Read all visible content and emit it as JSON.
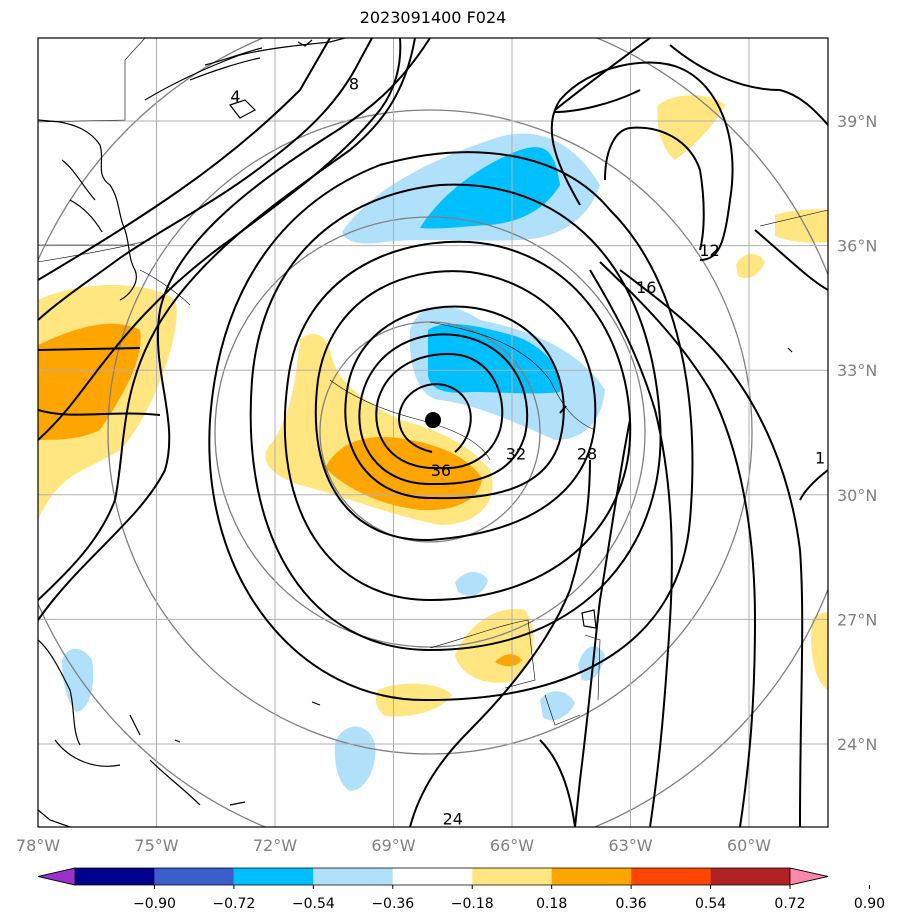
{
  "title": "2023091400 F024",
  "map": {
    "lon_range": [
      -78,
      -58
    ],
    "lat_range": [
      22,
      41
    ],
    "lon_ticks": [
      {
        "value": -78,
        "label": "78°W"
      },
      {
        "value": -75,
        "label": "75°W"
      },
      {
        "value": -72,
        "label": "72°W"
      },
      {
        "value": -69,
        "label": "69°W"
      },
      {
        "value": -66,
        "label": "66°W"
      },
      {
        "value": -63,
        "label": "63°W"
      },
      {
        "value": -60,
        "label": "60°W"
      }
    ],
    "lat_ticks": [
      {
        "value": 24,
        "label": "24°N"
      },
      {
        "value": 27,
        "label": "27°N"
      },
      {
        "value": 30,
        "label": "30°N"
      },
      {
        "value": 33,
        "label": "33°N"
      },
      {
        "value": 36,
        "label": "36°N"
      },
      {
        "value": 39,
        "label": "39°N"
      }
    ],
    "grid": true,
    "storm_center": {
      "lon": -68.0,
      "lat": 31.8
    },
    "contour_labels": [
      {
        "text": "36",
        "lon": -67.8,
        "lat": 30.6
      },
      {
        "text": "32",
        "lon": -65.9,
        "lat": 31.0
      },
      {
        "text": "28",
        "lon": -64.1,
        "lat": 31.0
      },
      {
        "text": "16",
        "lon": -62.6,
        "lat": 35.0
      },
      {
        "text": "12",
        "lon": -61.0,
        "lat": 35.9
      },
      {
        "text": "8",
        "lon": -70.0,
        "lat": 39.9
      },
      {
        "text": "4",
        "lon": -73.0,
        "lat": 39.6
      },
      {
        "text": "24",
        "lon": -67.5,
        "lat": 22.2
      },
      {
        "text": "1",
        "lon": -58.2,
        "lat": 30.9
      }
    ]
  },
  "colorbar": {
    "tick_labels": [
      "−0.90",
      "−0.72",
      "−0.54",
      "−0.36",
      "−0.18",
      "0.18",
      "0.36",
      "0.54",
      "0.72",
      "0.90"
    ],
    "colors": [
      "#9932cc",
      "#00008b",
      "#3a5fcd",
      "#00bfff",
      "#b0e0fa",
      "#ffffff",
      "#ffe680",
      "#ffa500",
      "#ff4500",
      "#b22222",
      "#ff88aa"
    ]
  }
}
